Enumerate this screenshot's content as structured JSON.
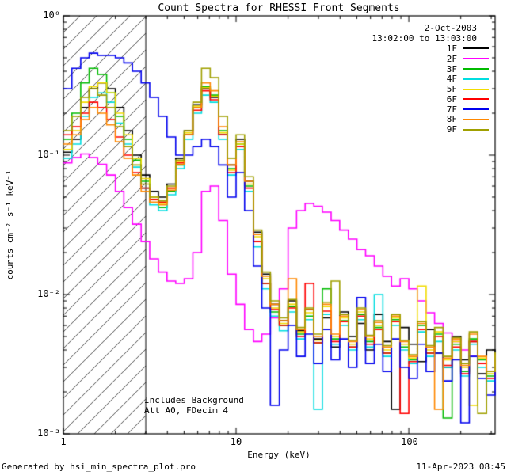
{
  "title": "Count Spectra for RHESSI Front Segments",
  "annotations": {
    "date": "2-Oct-2003",
    "time_range": "13:02:00 to 13:03:00",
    "note1": "Includes Background",
    "note2": "Att A0, FDecim 4"
  },
  "footer": {
    "left": "Generated by hsi_min_spectra_plot.pro",
    "right": "11-Apr-2023 08:45"
  },
  "axes": {
    "x": {
      "label": "Energy (keV)",
      "ticks": [
        "1",
        "10",
        "100"
      ]
    },
    "y": {
      "label": "counts cm⁻² s⁻¹ keV⁻¹",
      "ticks": [
        "10⁰",
        "10⁻¹",
        "10⁻²",
        "10⁻³"
      ]
    }
  },
  "chart_data": {
    "type": "line",
    "step": true,
    "title": "Count Spectra for RHESSI Front Segments",
    "xlabel": "Energy (keV)",
    "ylabel": "counts cm⁻² s⁻¹ keV⁻¹",
    "xscale": "log",
    "yscale": "log",
    "xlim": [
      1,
      316
    ],
    "ylim": [
      0.001,
      1
    ],
    "grid": false,
    "legend_position": "top-right",
    "hatched_region_kev": [
      1,
      3
    ],
    "axis_color": "#000000",
    "x": [
      1.0,
      1.12,
      1.26,
      1.41,
      1.58,
      1.78,
      2.0,
      2.24,
      2.51,
      2.82,
      3.16,
      3.55,
      3.98,
      4.47,
      5.01,
      5.62,
      6.31,
      7.08,
      7.94,
      8.91,
      10.0,
      11.2,
      12.6,
      14.1,
      15.8,
      17.8,
      20.0,
      22.4,
      25.1,
      28.2,
      31.6,
      35.5,
      39.8,
      44.7,
      50.1,
      56.2,
      63.1,
      70.8,
      79.4,
      89.1,
      100,
      112,
      126,
      141,
      158,
      178,
      200,
      224,
      251,
      282,
      316
    ],
    "series": [
      {
        "name": "1F",
        "color": "#000000",
        "values": [
          0.105,
          0.13,
          0.22,
          0.3,
          0.33,
          0.3,
          0.22,
          0.15,
          0.1,
          0.072,
          0.055,
          0.05,
          0.062,
          0.095,
          0.15,
          0.23,
          0.3,
          0.26,
          0.14,
          0.085,
          0.13,
          0.065,
          0.028,
          0.014,
          0.0085,
          0.0065,
          0.009,
          0.0055,
          0.0078,
          0.0048,
          0.0068,
          0.0042,
          0.0075,
          0.005,
          0.0062,
          0.004,
          0.0072,
          0.0046,
          0.0015,
          0.0058,
          0.0044,
          0.0033,
          0.0056,
          0.0038,
          0.003,
          0.005,
          0.0034,
          0.0046,
          0.0027,
          0.004,
          0.003
        ]
      },
      {
        "name": "2F",
        "color": "#FF00FF",
        "values": [
          0.088,
          0.096,
          0.102,
          0.096,
          0.086,
          0.072,
          0.055,
          0.042,
          0.032,
          0.024,
          0.018,
          0.0145,
          0.0125,
          0.012,
          0.013,
          0.02,
          0.055,
          0.06,
          0.034,
          0.014,
          0.0085,
          0.0056,
          0.0046,
          0.0052,
          0.0068,
          0.011,
          0.03,
          0.04,
          0.045,
          0.043,
          0.039,
          0.034,
          0.029,
          0.025,
          0.021,
          0.019,
          0.016,
          0.0135,
          0.0115,
          0.013,
          0.011,
          0.009,
          0.0074,
          0.0062,
          0.0053,
          0.0046,
          0.004,
          0.0036,
          0.0032,
          0.0028,
          0.0025
        ]
      },
      {
        "name": "3F",
        "color": "#00BB00",
        "values": [
          0.13,
          0.2,
          0.33,
          0.42,
          0.38,
          0.28,
          0.19,
          0.13,
          0.092,
          0.065,
          0.048,
          0.042,
          0.055,
          0.085,
          0.14,
          0.22,
          0.31,
          0.27,
          0.15,
          0.08,
          0.12,
          0.06,
          0.024,
          0.012,
          0.0075,
          0.006,
          0.0082,
          0.0052,
          0.007,
          0.0045,
          0.011,
          0.0048,
          0.0065,
          0.0042,
          0.0072,
          0.0046,
          0.0058,
          0.0038,
          0.0066,
          0.0042,
          0.0034,
          0.006,
          0.0038,
          0.0052,
          0.0013,
          0.0044,
          0.0028,
          0.0048,
          0.0034,
          0.0026,
          0.0036
        ]
      },
      {
        "name": "4F",
        "color": "#00DDE0",
        "values": [
          0.095,
          0.12,
          0.19,
          0.26,
          0.28,
          0.24,
          0.17,
          0.12,
          0.082,
          0.058,
          0.044,
          0.04,
          0.052,
          0.08,
          0.13,
          0.2,
          0.27,
          0.24,
          0.13,
          0.072,
          0.11,
          0.055,
          0.022,
          0.011,
          0.007,
          0.0055,
          0.0075,
          0.0048,
          0.0066,
          0.0015,
          0.0072,
          0.0044,
          0.006,
          0.004,
          0.0066,
          0.0042,
          0.01,
          0.0036,
          0.006,
          0.004,
          0.0032,
          0.0054,
          0.0036,
          0.0046,
          0.003,
          0.004,
          0.0026,
          0.0044,
          0.003,
          0.0024,
          0.0032
        ]
      },
      {
        "name": "5F",
        "color": "#F2DC00",
        "values": [
          0.11,
          0.15,
          0.24,
          0.31,
          0.33,
          0.28,
          0.2,
          0.14,
          0.095,
          0.068,
          0.05,
          0.045,
          0.058,
          0.09,
          0.145,
          0.225,
          0.305,
          0.265,
          0.145,
          0.078,
          0.12,
          0.062,
          0.026,
          0.013,
          0.008,
          0.0062,
          0.0085,
          0.0054,
          0.0074,
          0.0047,
          0.0082,
          0.005,
          0.0068,
          0.0044,
          0.0075,
          0.0048,
          0.006,
          0.004,
          0.0068,
          0.0044,
          0.0035,
          0.0115,
          0.004,
          0.0054,
          0.0034,
          0.0046,
          0.003,
          0.0016,
          0.0035,
          0.0027,
          0.0037
        ]
      },
      {
        "name": "6F",
        "color": "#FF0000",
        "values": [
          0.14,
          0.16,
          0.2,
          0.24,
          0.22,
          0.18,
          0.135,
          0.1,
          0.075,
          0.058,
          0.048,
          0.046,
          0.058,
          0.088,
          0.14,
          0.21,
          0.29,
          0.25,
          0.14,
          0.075,
          0.115,
          0.058,
          0.024,
          0.012,
          0.0078,
          0.006,
          0.008,
          0.005,
          0.012,
          0.0045,
          0.0076,
          0.0046,
          0.0064,
          0.0042,
          0.007,
          0.0044,
          0.0056,
          0.0038,
          0.0064,
          0.0014,
          0.0033,
          0.0056,
          0.0038,
          0.005,
          0.0031,
          0.0042,
          0.0027,
          0.0046,
          0.0032,
          0.0025,
          0.0034
        ]
      },
      {
        "name": "7F",
        "color": "#0000EE",
        "values": [
          0.3,
          0.42,
          0.5,
          0.54,
          0.52,
          0.52,
          0.5,
          0.46,
          0.4,
          0.33,
          0.26,
          0.19,
          0.135,
          0.1,
          0.1,
          0.115,
          0.13,
          0.115,
          0.085,
          0.05,
          0.075,
          0.04,
          0.016,
          0.008,
          0.0016,
          0.004,
          0.006,
          0.0036,
          0.0052,
          0.0032,
          0.0056,
          0.0034,
          0.0048,
          0.003,
          0.0095,
          0.0032,
          0.0044,
          0.0028,
          0.0048,
          0.003,
          0.0025,
          0.0044,
          0.0028,
          0.0038,
          0.0024,
          0.0034,
          0.0012,
          0.0036,
          0.0025,
          0.0019,
          0.0028
        ]
      },
      {
        "name": "8F",
        "color": "#FF8800",
        "values": [
          0.12,
          0.14,
          0.18,
          0.22,
          0.2,
          0.165,
          0.125,
          0.095,
          0.072,
          0.055,
          0.046,
          0.044,
          0.056,
          0.086,
          0.14,
          0.22,
          0.33,
          0.29,
          0.16,
          0.085,
          0.125,
          0.065,
          0.027,
          0.0135,
          0.0085,
          0.0065,
          0.013,
          0.0056,
          0.0078,
          0.005,
          0.0085,
          0.0052,
          0.007,
          0.0046,
          0.0078,
          0.005,
          0.0063,
          0.0042,
          0.007,
          0.0046,
          0.0036,
          0.0062,
          0.0042,
          0.0015,
          0.0035,
          0.0048,
          0.0031,
          0.0052,
          0.0036,
          0.0028,
          0.0038
        ]
      },
      {
        "name": "9F",
        "color": "#A0A000",
        "values": [
          0.15,
          0.19,
          0.26,
          0.3,
          0.27,
          0.22,
          0.16,
          0.115,
          0.085,
          0.062,
          0.05,
          0.047,
          0.06,
          0.092,
          0.15,
          0.24,
          0.42,
          0.36,
          0.19,
          0.095,
          0.14,
          0.07,
          0.029,
          0.0145,
          0.009,
          0.0068,
          0.0092,
          0.0058,
          0.008,
          0.0052,
          0.0088,
          0.0125,
          0.0072,
          0.0047,
          0.008,
          0.0051,
          0.0065,
          0.0043,
          0.0072,
          0.0047,
          0.0037,
          0.0064,
          0.0043,
          0.0058,
          0.0036,
          0.0049,
          0.0032,
          0.0054,
          0.0014,
          0.0028,
          0.0039
        ]
      }
    ]
  }
}
